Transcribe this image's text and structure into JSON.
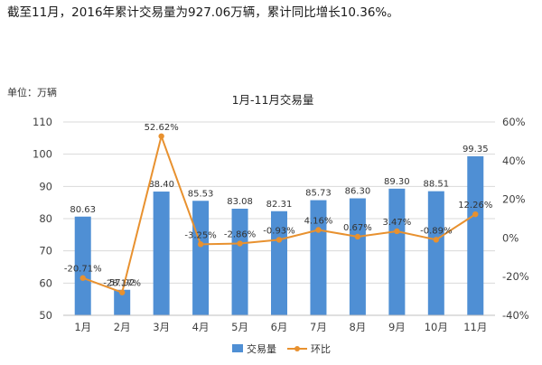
{
  "headline": "截至11月，2016年累计交易量为927.06万辆，累计同比增长10.36%。",
  "colors": {
    "bar": "#4f8fd4",
    "line": "#e8912f",
    "grid": "#d9d9d9",
    "axis_text": "#404040"
  },
  "chart_data": {
    "type": "bar",
    "title": "1月-11月交易量",
    "unit_label": "单位：万辆",
    "categories": [
      "1月",
      "2月",
      "3月",
      "4月",
      "5月",
      "6月",
      "7月",
      "8月",
      "9月",
      "10月",
      "11月"
    ],
    "series": [
      {
        "name": "交易量",
        "type": "bar",
        "axis": "left",
        "values": [
          80.63,
          57.92,
          88.4,
          85.53,
          83.08,
          82.31,
          85.73,
          86.3,
          89.3,
          88.51,
          99.35
        ],
        "labels": [
          "80.63",
          "57.92",
          "88.40",
          "85.53",
          "83.08",
          "82.31",
          "85.73",
          "86.30",
          "89.30",
          "88.51",
          "99.35"
        ]
      },
      {
        "name": "环比",
        "type": "line",
        "axis": "right",
        "values": [
          -20.71,
          -28.17,
          52.62,
          -3.25,
          -2.86,
          -0.93,
          4.16,
          0.67,
          3.47,
          -0.89,
          12.26
        ],
        "labels": [
          "-20.71%",
          "-28.17%",
          "52.62%",
          "-3.25%",
          "-2.86%",
          "-0.93%",
          "4.16%",
          "0.67%",
          "3.47%",
          "-0.89%",
          "12.26%"
        ]
      }
    ],
    "y_left": {
      "min": 50,
      "max": 110,
      "ticks": [
        50,
        60,
        70,
        80,
        90,
        100,
        110
      ],
      "tick_labels": [
        "50",
        "60",
        "70",
        "80",
        "90",
        "100",
        "110"
      ]
    },
    "y_right": {
      "min": -40,
      "max": 60,
      "ticks": [
        -40,
        -20,
        0,
        20,
        40,
        60
      ],
      "tick_labels": [
        "-40%",
        "-20%",
        "0%",
        "20%",
        "40%",
        "60%"
      ]
    },
    "grid": true,
    "legend_position": "bottom-center"
  }
}
